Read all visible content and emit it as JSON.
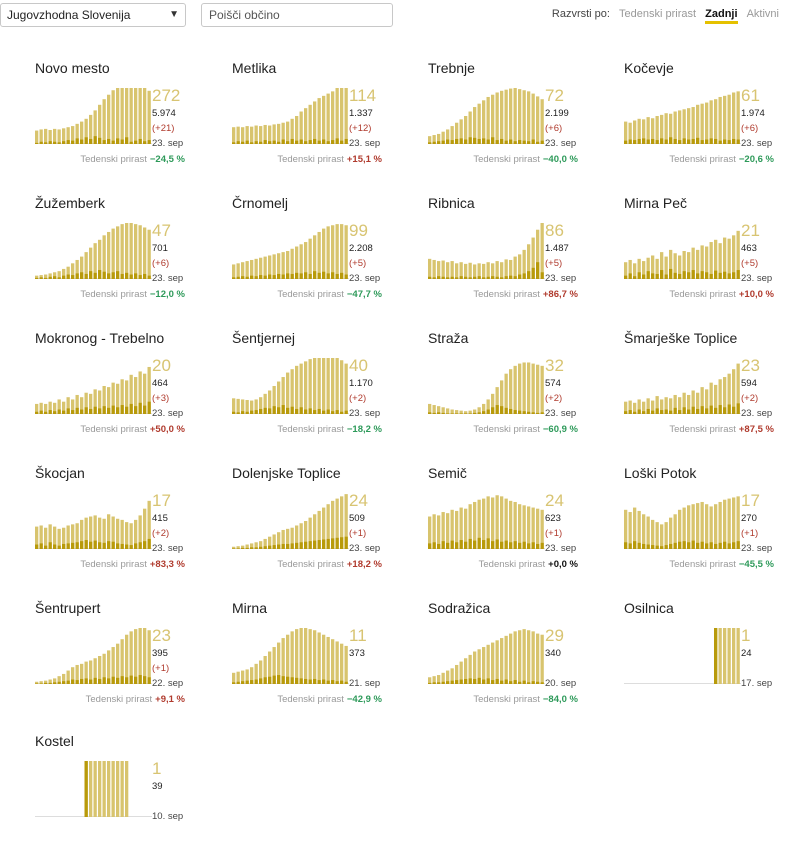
{
  "filters": {
    "region": "Jugovzhodna Slovenija",
    "search_placeholder": "Poišči občino",
    "sort_label": "Razvrsti po:",
    "sort_options": [
      "Tedenski prirast",
      "Zadnji",
      "Aktivni"
    ],
    "sort_active": "Zadnji"
  },
  "colors": {
    "accent": "#e5c100",
    "bar_light": "#d8c46e",
    "bar_dark": "#b89a0a",
    "up": "#b03b2e",
    "down": "#2e9a5a"
  },
  "trend_label": "Tedenski prirast",
  "cards": [
    {
      "name": "Novo mesto",
      "active": "272",
      "total": "5.974",
      "delta": "(+21)",
      "date": "23. sep",
      "pct": "−24,5 %",
      "dir": "down",
      "bars": [
        24,
        26,
        27,
        25,
        27,
        26,
        28,
        30,
        32,
        36,
        40,
        45,
        52,
        60,
        70,
        80,
        88,
        96,
        102,
        104,
        106,
        108,
        107,
        104,
        100,
        95
      ],
      "new": [
        2,
        4,
        3,
        5,
        4,
        3,
        5,
        7,
        6,
        10,
        8,
        12,
        9,
        14,
        11,
        7,
        9,
        6,
        10,
        8,
        12,
        4,
        6,
        9,
        5,
        7
      ]
    },
    {
      "name": "Metlika",
      "active": "114",
      "total": "1.337",
      "delta": "(+12)",
      "date": "23. sep",
      "pct": "+15,1 %",
      "dir": "up",
      "bars": [
        30,
        31,
        30,
        32,
        31,
        33,
        32,
        34,
        33,
        35,
        36,
        38,
        40,
        45,
        50,
        58,
        64,
        70,
        76,
        82,
        86,
        90,
        94,
        100,
        106,
        112
      ],
      "new": [
        3,
        5,
        4,
        6,
        3,
        5,
        4,
        7,
        5,
        6,
        4,
        8,
        5,
        9,
        6,
        8,
        5,
        7,
        9,
        6,
        8,
        5,
        7,
        10,
        6,
        9
      ]
    },
    {
      "name": "Trebnje",
      "active": "72",
      "total": "2.199",
      "delta": "(+6)",
      "date": "23. sep",
      "pct": "−40,0 %",
      "dir": "down",
      "bars": [
        14,
        16,
        18,
        22,
        26,
        32,
        38,
        44,
        50,
        58,
        66,
        72,
        78,
        84,
        88,
        92,
        95,
        97,
        99,
        100,
        98,
        96,
        94,
        90,
        85,
        80
      ],
      "new": [
        3,
        4,
        5,
        6,
        8,
        7,
        9,
        10,
        8,
        12,
        11,
        9,
        10,
        8,
        12,
        7,
        9,
        6,
        8,
        5,
        7,
        6,
        5,
        8,
        4,
        6
      ]
    },
    {
      "name": "Kočevje",
      "active": "61",
      "total": "1.974",
      "delta": "(+6)",
      "date": "23. sep",
      "pct": "−20,6 %",
      "dir": "down",
      "bars": [
        40,
        38,
        42,
        45,
        44,
        48,
        46,
        50,
        52,
        55,
        54,
        58,
        60,
        62,
        64,
        66,
        70,
        72,
        74,
        78,
        80,
        84,
        86,
        88,
        92,
        94
      ],
      "new": [
        6,
        8,
        7,
        9,
        10,
        8,
        9,
        7,
        10,
        8,
        12,
        9,
        7,
        10,
        8,
        9,
        11,
        7,
        8,
        10,
        9,
        6,
        8,
        7,
        9,
        8
      ]
    },
    {
      "name": "Žužemberk",
      "active": "47",
      "total": "701",
      "delta": "(+6)",
      "date": "23. sep",
      "pct": "−12,0 %",
      "dir": "down",
      "bars": [
        6,
        7,
        8,
        10,
        12,
        14,
        18,
        22,
        28,
        34,
        40,
        48,
        56,
        64,
        70,
        78,
        84,
        90,
        94,
        98,
        100,
        100,
        98,
        96,
        92,
        88
      ],
      "new": [
        2,
        3,
        2,
        4,
        5,
        3,
        6,
        8,
        7,
        10,
        12,
        9,
        14,
        11,
        16,
        13,
        10,
        12,
        14,
        9,
        11,
        8,
        10,
        7,
        9,
        6
      ]
    },
    {
      "name": "Črnomelj",
      "active": "99",
      "total": "2.208",
      "delta": "(+5)",
      "date": "23. sep",
      "pct": "−47,7 %",
      "dir": "down",
      "bars": [
        26,
        28,
        30,
        32,
        34,
        36,
        38,
        40,
        42,
        44,
        46,
        48,
        50,
        54,
        58,
        62,
        66,
        72,
        78,
        84,
        90,
        94,
        96,
        98,
        98,
        96
      ],
      "new": [
        3,
        4,
        5,
        4,
        6,
        5,
        7,
        6,
        8,
        7,
        9,
        8,
        10,
        9,
        11,
        10,
        12,
        9,
        14,
        11,
        13,
        10,
        12,
        9,
        11,
        8
      ]
    },
    {
      "name": "Ribnica",
      "active": "86",
      "total": "1.487",
      "delta": "(+5)",
      "date": "23. sep",
      "pct": "+86,7 %",
      "dir": "up",
      "bars": [
        36,
        34,
        32,
        33,
        30,
        32,
        28,
        30,
        27,
        29,
        26,
        28,
        27,
        30,
        28,
        32,
        30,
        35,
        34,
        40,
        44,
        52,
        62,
        74,
        88,
        100
      ],
      "new": [
        4,
        3,
        5,
        4,
        3,
        4,
        3,
        5,
        4,
        3,
        4,
        5,
        3,
        4,
        5,
        4,
        3,
        5,
        6,
        5,
        8,
        10,
        14,
        20,
        30,
        12
      ]
    },
    {
      "name": "Mirna Peč",
      "active": "21",
      "total": "463",
      "delta": "(+5)",
      "date": "23. sep",
      "pct": "+10,0 %",
      "dir": "up",
      "bars": [
        30,
        34,
        28,
        36,
        32,
        38,
        42,
        36,
        48,
        40,
        52,
        46,
        42,
        50,
        48,
        56,
        52,
        60,
        58,
        66,
        70,
        64,
        74,
        72,
        78,
        86
      ],
      "new": [
        6,
        10,
        5,
        12,
        8,
        14,
        10,
        9,
        16,
        8,
        18,
        11,
        9,
        14,
        12,
        16,
        10,
        14,
        12,
        9,
        15,
        11,
        13,
        10,
        12,
        16
      ]
    },
    {
      "name": "Mokronog - Trebelno",
      "active": "20",
      "total": "464",
      "delta": "(+3)",
      "date": "23. sep",
      "pct": "+50,0 %",
      "dir": "up",
      "bars": [
        18,
        20,
        18,
        22,
        20,
        26,
        22,
        30,
        26,
        34,
        30,
        38,
        36,
        44,
        42,
        50,
        48,
        56,
        54,
        62,
        60,
        70,
        66,
        76,
        72,
        84
      ],
      "new": [
        4,
        6,
        4,
        7,
        5,
        8,
        6,
        10,
        7,
        11,
        8,
        12,
        9,
        13,
        10,
        14,
        11,
        15,
        12,
        16,
        13,
        18,
        14,
        20,
        15,
        22
      ]
    },
    {
      "name": "Šentjernej",
      "active": "40",
      "total": "1.170",
      "delta": "(+2)",
      "date": "23. sep",
      "pct": "−18,2 %",
      "dir": "down",
      "bars": [
        28,
        27,
        26,
        25,
        24,
        26,
        30,
        36,
        42,
        50,
        58,
        66,
        74,
        80,
        86,
        90,
        94,
        98,
        100,
        102,
        104,
        104,
        102,
        100,
        96,
        90
      ],
      "new": [
        4,
        3,
        5,
        4,
        6,
        7,
        9,
        11,
        10,
        14,
        12,
        16,
        11,
        13,
        9,
        12,
        8,
        10,
        7,
        9,
        6,
        8,
        5,
        7,
        4,
        6
      ]
    },
    {
      "name": "Straža",
      "active": "32",
      "total": "574",
      "delta": "(+2)",
      "date": "23. sep",
      "pct": "−60,9 %",
      "dir": "down",
      "bars": [
        18,
        16,
        14,
        12,
        10,
        8,
        7,
        6,
        5,
        6,
        8,
        12,
        18,
        26,
        36,
        48,
        60,
        72,
        80,
        86,
        90,
        92,
        92,
        90,
        88,
        86
      ],
      "new": [
        3,
        2,
        3,
        2,
        1,
        1,
        1,
        1,
        1,
        1,
        2,
        3,
        5,
        8,
        12,
        16,
        14,
        11,
        9,
        7,
        6,
        5,
        4,
        3,
        2,
        3
      ]
    },
    {
      "name": "Šmarješke Toplice",
      "active": "23",
      "total": "594",
      "delta": "(+2)",
      "date": "23. sep",
      "pct": "+87,5 %",
      "dir": "up",
      "bars": [
        22,
        24,
        20,
        26,
        22,
        28,
        24,
        32,
        26,
        30,
        28,
        34,
        30,
        38,
        34,
        42,
        38,
        48,
        44,
        56,
        52,
        62,
        66,
        72,
        80,
        90
      ],
      "new": [
        5,
        7,
        4,
        8,
        5,
        9,
        6,
        10,
        7,
        8,
        6,
        11,
        7,
        12,
        8,
        13,
        9,
        14,
        10,
        15,
        11,
        16,
        12,
        17,
        13,
        19
      ]
    },
    {
      "name": "Škocjan",
      "active": "17",
      "total": "415",
      "delta": "(+2)",
      "date": "23. sep",
      "pct": "+83,3 %",
      "dir": "up",
      "bars": [
        40,
        42,
        38,
        44,
        40,
        36,
        38,
        42,
        44,
        46,
        52,
        56,
        58,
        60,
        56,
        54,
        62,
        58,
        54,
        52,
        48,
        46,
        52,
        60,
        72,
        86
      ],
      "new": [
        8,
        10,
        6,
        12,
        8,
        6,
        9,
        10,
        11,
        12,
        14,
        16,
        13,
        15,
        12,
        11,
        14,
        13,
        10,
        9,
        8,
        7,
        10,
        12,
        14,
        18
      ]
    },
    {
      "name": "Dolenjske Toplice",
      "active": "24",
      "total": "509",
      "delta": "(+1)",
      "date": "23. sep",
      "pct": "+18,2 %",
      "dir": "up",
      "bars": [
        4,
        5,
        6,
        8,
        10,
        12,
        14,
        18,
        22,
        26,
        30,
        34,
        36,
        38,
        42,
        46,
        50,
        56,
        62,
        68,
        74,
        80,
        86,
        90,
        94,
        98
      ],
      "new": [
        1,
        1,
        2,
        2,
        3,
        3,
        4,
        5,
        6,
        7,
        8,
        9,
        9,
        10,
        11,
        12,
        13,
        14,
        15,
        16,
        17,
        18,
        19,
        20,
        21,
        22
      ]
    },
    {
      "name": "Semič",
      "active": "24",
      "total": "623",
      "delta": "(+1)",
      "date": "23. sep",
      "pct": "+0,0 %",
      "dir": "flat",
      "bars": [
        58,
        62,
        60,
        66,
        64,
        70,
        68,
        74,
        72,
        80,
        84,
        88,
        90,
        94,
        92,
        96,
        94,
        90,
        86,
        84,
        80,
        78,
        76,
        74,
        72,
        70
      ],
      "new": [
        10,
        12,
        9,
        14,
        11,
        15,
        12,
        16,
        13,
        18,
        15,
        20,
        16,
        19,
        14,
        17,
        13,
        15,
        12,
        14,
        11,
        13,
        10,
        12,
        9,
        11
      ]
    },
    {
      "name": "Loški Potok",
      "active": "17",
      "total": "270",
      "delta": "(+1)",
      "date": "23. sep",
      "pct": "−45,5 %",
      "dir": "down",
      "bars": [
        70,
        66,
        74,
        68,
        62,
        58,
        52,
        48,
        44,
        48,
        56,
        62,
        70,
        74,
        78,
        80,
        82,
        84,
        80,
        76,
        80,
        84,
        88,
        90,
        92,
        94
      ],
      "new": [
        12,
        10,
        14,
        11,
        9,
        8,
        7,
        6,
        5,
        7,
        9,
        11,
        13,
        14,
        12,
        15,
        11,
        13,
        10,
        12,
        9,
        11,
        13,
        10,
        12,
        14
      ]
    },
    {
      "name": "Šentrupert",
      "active": "23",
      "total": "395",
      "delta": "(+1)",
      "date": "22. sep",
      "pct": "+9,1 %",
      "dir": "up",
      "bars": [
        4,
        5,
        6,
        8,
        10,
        14,
        18,
        24,
        30,
        34,
        36,
        40,
        42,
        46,
        50,
        54,
        60,
        66,
        72,
        80,
        88,
        94,
        98,
        100,
        100,
        96
      ],
      "new": [
        1,
        1,
        2,
        2,
        3,
        4,
        5,
        6,
        8,
        7,
        9,
        10,
        8,
        11,
        9,
        12,
        10,
        13,
        11,
        14,
        12,
        15,
        13,
        16,
        14,
        12
      ]
    },
    {
      "name": "Mirna",
      "active": "11",
      "total": "373",
      "delta": "",
      "date": "21. sep",
      "pct": "−42,9 %",
      "dir": "down",
      "bars": [
        20,
        22,
        24,
        26,
        30,
        36,
        42,
        50,
        58,
        66,
        74,
        82,
        88,
        94,
        98,
        100,
        100,
        98,
        96,
        92,
        88,
        84,
        80,
        76,
        72,
        68
      ],
      "new": [
        3,
        4,
        5,
        6,
        7,
        8,
        10,
        12,
        13,
        15,
        16,
        14,
        13,
        12,
        11,
        10,
        9,
        8,
        9,
        7,
        8,
        6,
        7,
        5,
        6,
        4
      ]
    },
    {
      "name": "Sodražica",
      "active": "29",
      "total": "340",
      "delta": "",
      "date": "20. sep",
      "pct": "−84,0 %",
      "dir": "down",
      "bars": [
        12,
        14,
        16,
        20,
        24,
        28,
        34,
        40,
        46,
        52,
        58,
        62,
        66,
        70,
        74,
        78,
        82,
        86,
        90,
        94,
        96,
        98,
        96,
        94,
        90,
        88
      ],
      "new": [
        2,
        3,
        3,
        4,
        5,
        6,
        7,
        8,
        9,
        10,
        9,
        11,
        8,
        10,
        7,
        9,
        6,
        8,
        5,
        7,
        4,
        6,
        3,
        5,
        4,
        3
      ]
    },
    {
      "name": "Osilnica",
      "active": "1",
      "total": "24",
      "delta": "",
      "date": "17. sep",
      "pct": "",
      "dir": "none",
      "bars": [
        0,
        0,
        0,
        0,
        0,
        0,
        0,
        0,
        0,
        0,
        0,
        0,
        0,
        0,
        0,
        0,
        0,
        0,
        0,
        0,
        100,
        100,
        100,
        100,
        100,
        100
      ],
      "new": [
        0,
        0,
        0,
        0,
        0,
        0,
        0,
        0,
        0,
        0,
        0,
        0,
        0,
        0,
        0,
        0,
        0,
        0,
        0,
        0,
        100,
        0,
        0,
        0,
        0,
        0
      ]
    },
    {
      "name": "Kostel",
      "active": "1",
      "total": "39",
      "delta": "",
      "date": "10. sep",
      "pct": "",
      "dir": "none",
      "bars": [
        0,
        0,
        0,
        0,
        0,
        0,
        0,
        0,
        0,
        0,
        0,
        100,
        100,
        100,
        100,
        100,
        100,
        100,
        100,
        100,
        100,
        0,
        0,
        0,
        0,
        0
      ],
      "new": [
        0,
        0,
        0,
        0,
        0,
        0,
        0,
        0,
        0,
        0,
        0,
        100,
        0,
        0,
        0,
        0,
        0,
        0,
        0,
        0,
        0,
        0,
        0,
        0,
        0,
        0
      ]
    }
  ]
}
